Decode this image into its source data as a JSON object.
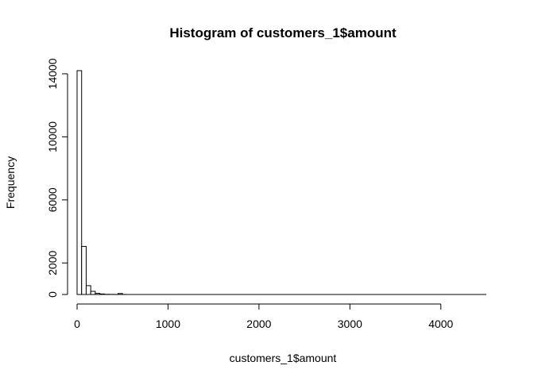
{
  "chart_data": {
    "type": "bar",
    "title": "Histogram of customers_1$amount",
    "xlabel": "customers_1$amount",
    "ylabel": "Frequency",
    "xlim": [
      0,
      4500
    ],
    "ylim": [
      0,
      14200
    ],
    "x_ticks": [
      0,
      1000,
      2000,
      3000,
      4000
    ],
    "y_ticks": [
      0,
      2000,
      6000,
      10000,
      14000
    ],
    "bin_width": 50,
    "bins": [
      {
        "start": 0,
        "end": 50,
        "count": 14200
      },
      {
        "start": 50,
        "end": 100,
        "count": 3050
      },
      {
        "start": 100,
        "end": 150,
        "count": 560
      },
      {
        "start": 150,
        "end": 200,
        "count": 200
      },
      {
        "start": 200,
        "end": 250,
        "count": 70
      },
      {
        "start": 250,
        "end": 300,
        "count": 35
      },
      {
        "start": 300,
        "end": 350,
        "count": 10
      },
      {
        "start": 350,
        "end": 400,
        "count": 6
      },
      {
        "start": 400,
        "end": 450,
        "count": 4
      },
      {
        "start": 450,
        "end": 500,
        "count": 60
      },
      {
        "start": 500,
        "end": 550,
        "count": 3
      }
    ],
    "grid": false,
    "legend": "none"
  }
}
